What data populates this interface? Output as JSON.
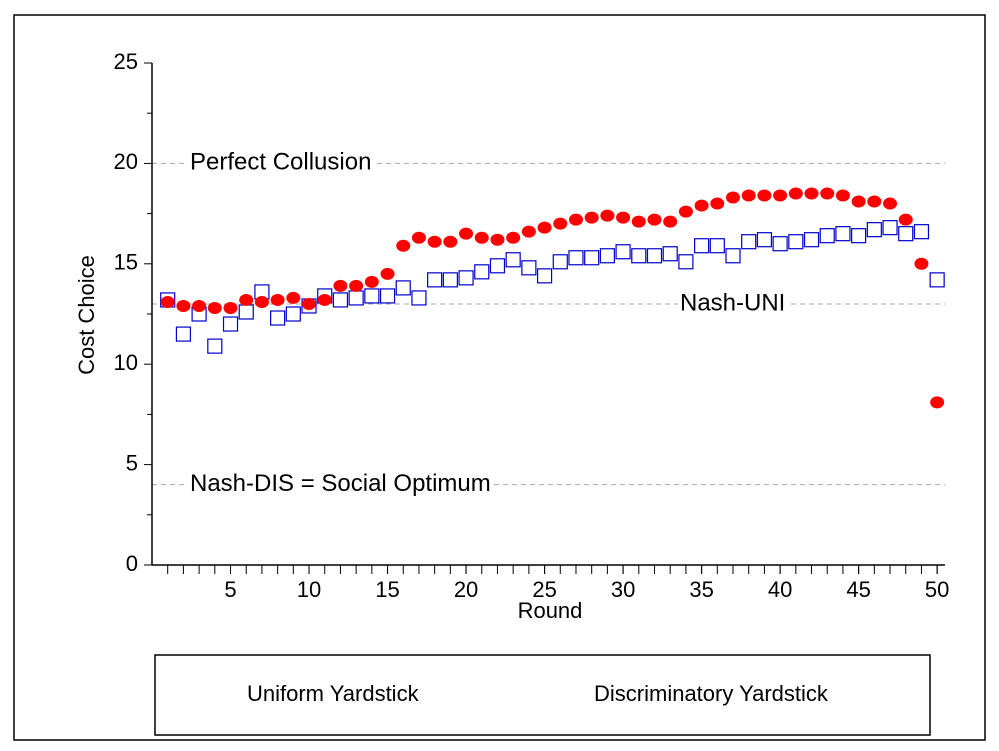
{
  "chart_data": {
    "type": "scatter",
    "x_label": "Round",
    "y_label": "Cost Choice",
    "x": [
      1,
      2,
      3,
      4,
      5,
      6,
      7,
      8,
      9,
      10,
      11,
      12,
      13,
      14,
      15,
      16,
      17,
      18,
      19,
      20,
      21,
      22,
      23,
      24,
      25,
      26,
      27,
      28,
      29,
      30,
      31,
      32,
      33,
      34,
      35,
      36,
      37,
      38,
      39,
      40,
      41,
      42,
      43,
      44,
      45,
      46,
      47,
      48,
      49,
      50
    ],
    "series": [
      {
        "name": "Uniform Yardstick",
        "color": "#0000cc",
        "marker": "square",
        "values": [
          13.2,
          11.5,
          12.5,
          10.9,
          12.0,
          12.6,
          13.6,
          12.3,
          12.5,
          12.9,
          13.4,
          13.2,
          13.3,
          13.4,
          13.4,
          13.8,
          13.3,
          14.2,
          14.2,
          14.3,
          14.6,
          14.9,
          15.2,
          14.8,
          14.4,
          15.1,
          15.3,
          15.3,
          15.4,
          15.6,
          15.4,
          15.4,
          15.5,
          15.1,
          15.9,
          15.9,
          15.4,
          16.1,
          16.2,
          16.0,
          16.1,
          16.2,
          16.4,
          16.5,
          16.4,
          16.7,
          16.8,
          16.5,
          16.6,
          14.2
        ]
      },
      {
        "name": "Discriminatory Yardstick",
        "color": "#ff0000",
        "marker": "circle",
        "values": [
          13.1,
          12.9,
          12.9,
          12.8,
          12.8,
          13.2,
          13.1,
          13.2,
          13.3,
          13.0,
          13.2,
          13.9,
          13.9,
          14.1,
          14.5,
          15.9,
          16.3,
          16.1,
          16.1,
          16.5,
          16.3,
          16.2,
          16.3,
          16.6,
          16.8,
          17.0,
          17.2,
          17.3,
          17.4,
          17.3,
          17.1,
          17.2,
          17.1,
          17.6,
          17.9,
          18.0,
          18.3,
          18.4,
          18.4,
          18.4,
          18.5,
          18.5,
          18.5,
          18.4,
          18.1,
          18.1,
          18.0,
          17.2,
          15.0,
          8.1
        ]
      }
    ],
    "reference_lines": [
      {
        "label": "Perfect Collusion",
        "value": 20
      },
      {
        "label": "Nash-UNI",
        "value": 13
      },
      {
        "label": "Nash-DIS = Social Optimum",
        "value": 4
      }
    ],
    "xlim": [
      0,
      50.5
    ],
    "ylim": [
      0,
      25
    ],
    "xticks": [
      5,
      10,
      15,
      20,
      25,
      30,
      35,
      40,
      45,
      50
    ],
    "xminorticks": [
      1,
      2,
      3,
      4,
      5,
      6,
      7,
      8,
      9,
      10,
      11,
      12,
      13,
      14,
      15,
      16,
      17,
      18,
      19,
      20,
      21,
      22,
      23,
      24,
      25,
      26,
      27,
      28,
      29,
      30,
      31,
      32,
      33,
      34,
      35,
      36,
      37,
      38,
      39,
      40,
      41,
      42,
      43,
      44,
      45,
      46,
      47,
      48,
      49,
      50
    ],
    "yticks": [
      0,
      5,
      10,
      15,
      20,
      25
    ],
    "yminorticks": [
      2.5,
      7.5,
      12.5,
      17.5,
      22.5
    ],
    "legend": "bottom"
  }
}
